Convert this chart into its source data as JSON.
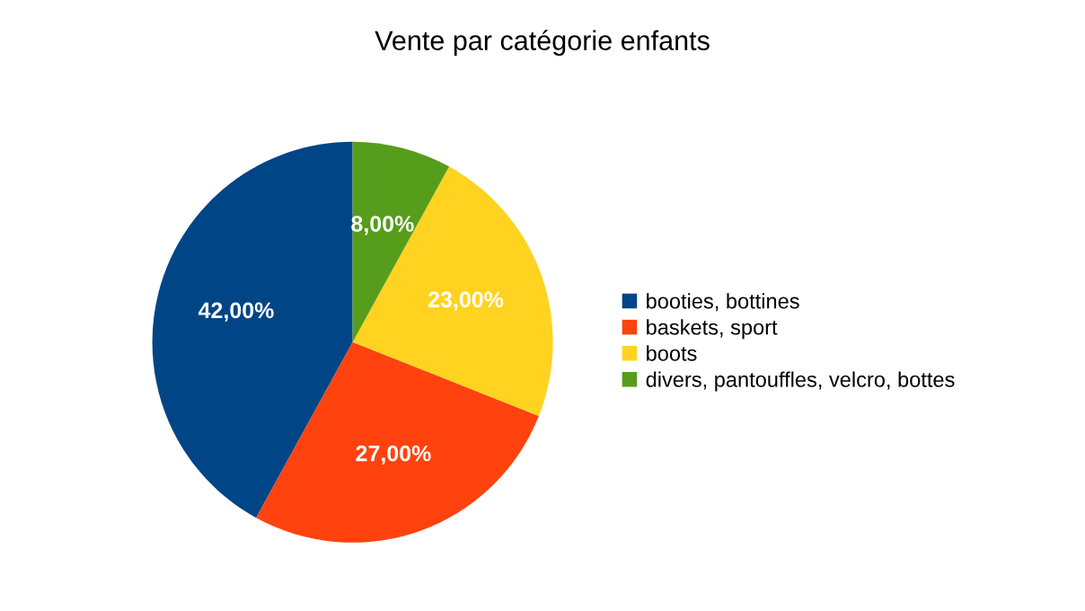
{
  "chart_data": {
    "type": "pie",
    "title": "Vente par catégorie enfants",
    "categories": [
      "booties, bottines",
      "baskets, sport",
      "boots",
      "divers, pantouffles, velcro, bottes"
    ],
    "values": [
      42,
      27,
      23,
      8
    ],
    "colors": [
      "#004586",
      "#ff420e",
      "#ffd320",
      "#579d1c"
    ],
    "value_labels": [
      "42,00%",
      "27,00%",
      "23,00%",
      "8,00%"
    ],
    "legend": "right"
  }
}
